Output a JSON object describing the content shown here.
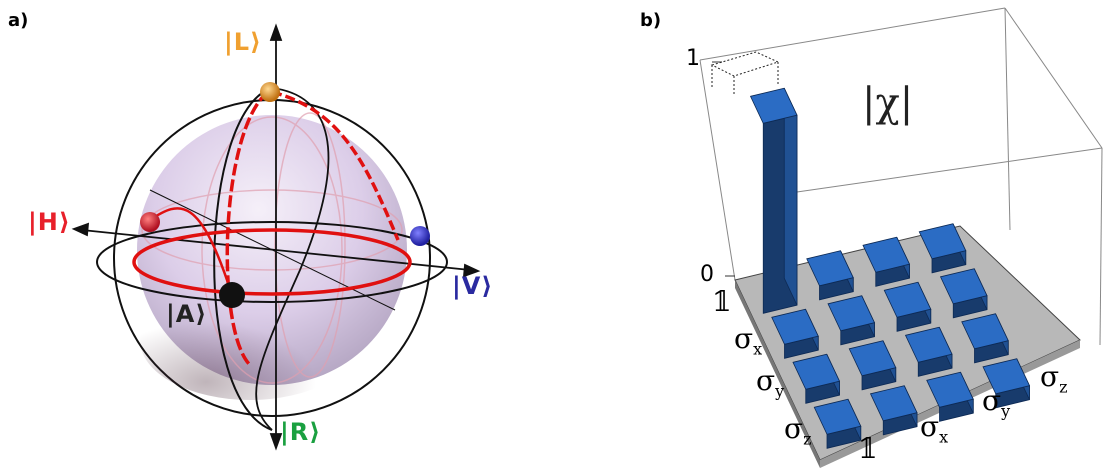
{
  "panels": {
    "a": {
      "label": "a)"
    },
    "b": {
      "label": "b)"
    }
  },
  "bloch": {
    "states": {
      "L": {
        "label": "|L⟩",
        "color": "#f0a030"
      },
      "H": {
        "label": "|H⟩",
        "color": "#e8202a"
      },
      "V": {
        "label": "|V⟩",
        "color": "#2a2aa0"
      },
      "A": {
        "label": "|A⟩",
        "color": "#222222"
      },
      "R": {
        "label": "|R⟩",
        "color": "#1aa040"
      }
    },
    "trajectory_color": "#e01010"
  },
  "chi": {
    "title": "|χ|",
    "z_ticks": [
      "1",
      "0"
    ],
    "row_labels": [
      "𝟙",
      "σ",
      "σ",
      "σ"
    ],
    "row_subscripts": [
      "",
      "x",
      "y",
      "z"
    ],
    "col_labels": [
      "𝟙",
      "σ",
      "σ",
      "σ"
    ],
    "col_subscripts": [
      "",
      "x",
      "y",
      "z"
    ],
    "bar_color": "#2b6cc4",
    "floor_color": "#b8b8b8"
  }
}
